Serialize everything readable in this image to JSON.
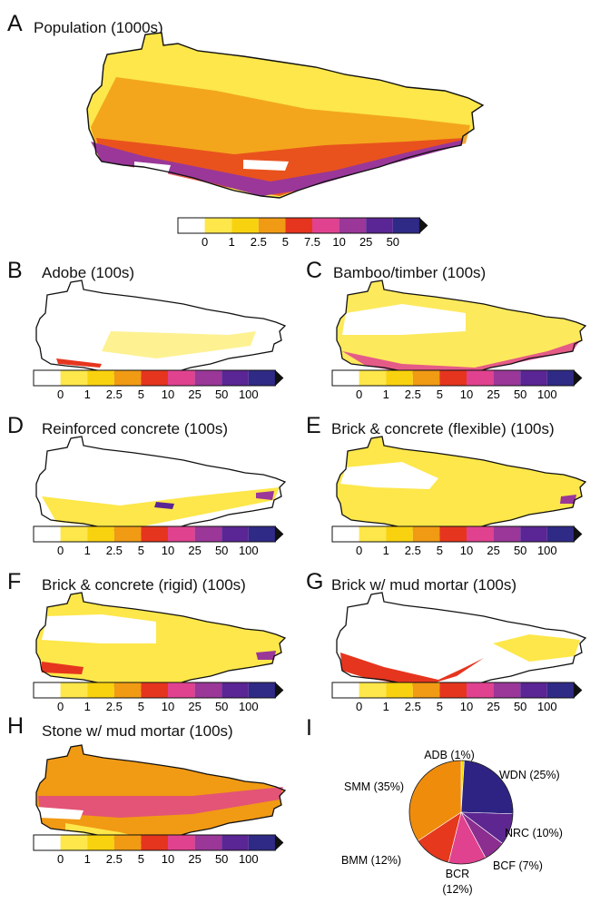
{
  "panels": [
    {
      "letter": "A",
      "title": "Population (1000s)",
      "ticks": [
        "0",
        "1",
        "2.5",
        "5",
        "7.5",
        "10",
        "25",
        "50"
      ]
    },
    {
      "letter": "B",
      "title": "Adobe (100s)",
      "ticks": [
        "0",
        "1",
        "2.5",
        "5",
        "10",
        "25",
        "50",
        "100"
      ]
    },
    {
      "letter": "C",
      "title": "Bamboo/timber (100s)",
      "ticks": [
        "0",
        "1",
        "2.5",
        "5",
        "10",
        "25",
        "50",
        "100"
      ]
    },
    {
      "letter": "D",
      "title": "Reinforced concrete (100s)",
      "ticks": [
        "0",
        "1",
        "2.5",
        "5",
        "10",
        "25",
        "50",
        "100"
      ]
    },
    {
      "letter": "E",
      "title": "Brick & concrete (flexible) (100s)",
      "ticks": [
        "0",
        "1",
        "2.5",
        "5",
        "10",
        "25",
        "50",
        "100"
      ]
    },
    {
      "letter": "F",
      "title": "Brick & concrete (rigid) (100s)",
      "ticks": [
        "0",
        "1",
        "2.5",
        "5",
        "10",
        "25",
        "50",
        "100"
      ]
    },
    {
      "letter": "G",
      "title": "Brick w/ mud mortar (100s)",
      "ticks": [
        "0",
        "1",
        "2.5",
        "5",
        "10",
        "25",
        "50",
        "100"
      ]
    },
    {
      "letter": "H",
      "title": "Stone w/ mud mortar (100s)",
      "ticks": [
        "0",
        "1",
        "2.5",
        "5",
        "10",
        "25",
        "50",
        "100"
      ]
    },
    {
      "letter": "I",
      "title": ""
    }
  ],
  "colors": {
    "scale": [
      "#ffffff",
      "#fde74a",
      "#f9d20f",
      "#f19a14",
      "#e6351e",
      "#e0428f",
      "#9a3799",
      "#5a2594",
      "#2f2a86"
    ],
    "pie": {
      "ADB": "#f5d800",
      "WDN": "#2e2383",
      "NRC": "#5d2690",
      "BCF": "#8b2e8f",
      "BCR": "#e0428f",
      "BMM": "#e5381d",
      "SMM": "#f08c0c"
    }
  },
  "chart_data": [
    {
      "type": "heatmap",
      "panel": "A",
      "title": "Population (1000s)",
      "legend_ticks": [
        "0",
        "1",
        "2.5",
        "5",
        "7.5",
        "10",
        "25",
        "50"
      ]
    },
    {
      "type": "heatmap",
      "panel": "B",
      "title": "Adobe (100s)",
      "legend_ticks": [
        "0",
        "1",
        "2.5",
        "5",
        "10",
        "25",
        "50",
        "100"
      ]
    },
    {
      "type": "heatmap",
      "panel": "C",
      "title": "Bamboo/timber (100s)",
      "legend_ticks": [
        "0",
        "1",
        "2.5",
        "5",
        "10",
        "25",
        "50",
        "100"
      ]
    },
    {
      "type": "heatmap",
      "panel": "D",
      "title": "Reinforced concrete (100s)",
      "legend_ticks": [
        "0",
        "1",
        "2.5",
        "5",
        "10",
        "25",
        "50",
        "100"
      ]
    },
    {
      "type": "heatmap",
      "panel": "E",
      "title": "Brick & concrete (flexible) (100s)",
      "legend_ticks": [
        "0",
        "1",
        "2.5",
        "5",
        "10",
        "25",
        "50",
        "100"
      ]
    },
    {
      "type": "heatmap",
      "panel": "F",
      "title": "Brick & concrete (rigid) (100s)",
      "legend_ticks": [
        "0",
        "1",
        "2.5",
        "5",
        "10",
        "25",
        "50",
        "100"
      ]
    },
    {
      "type": "heatmap",
      "panel": "G",
      "title": "Brick w/ mud mortar (100s)",
      "legend_ticks": [
        "0",
        "1",
        "2.5",
        "5",
        "10",
        "25",
        "50",
        "100"
      ]
    },
    {
      "type": "heatmap",
      "panel": "H",
      "title": "Stone w/ mud mortar (100s)",
      "legend_ticks": [
        "0",
        "1",
        "2.5",
        "5",
        "10",
        "25",
        "50",
        "100"
      ]
    },
    {
      "type": "pie",
      "panel": "I",
      "slices": [
        {
          "code": "ADB",
          "label": "ADB (1%)",
          "value": 1
        },
        {
          "code": "WDN",
          "label": "WDN (25%)",
          "value": 25
        },
        {
          "code": "NRC",
          "label": "NRC (10%)",
          "value": 10
        },
        {
          "code": "BCF",
          "label": "BCF (7%)",
          "value": 7
        },
        {
          "code": "BCR",
          "label": "BCR (12%)",
          "value": 12
        },
        {
          "code": "BMM",
          "label": "BMM (12%)",
          "value": 12
        },
        {
          "code": "SMM",
          "label": "SMM (35%)",
          "value": 35
        }
      ]
    }
  ]
}
